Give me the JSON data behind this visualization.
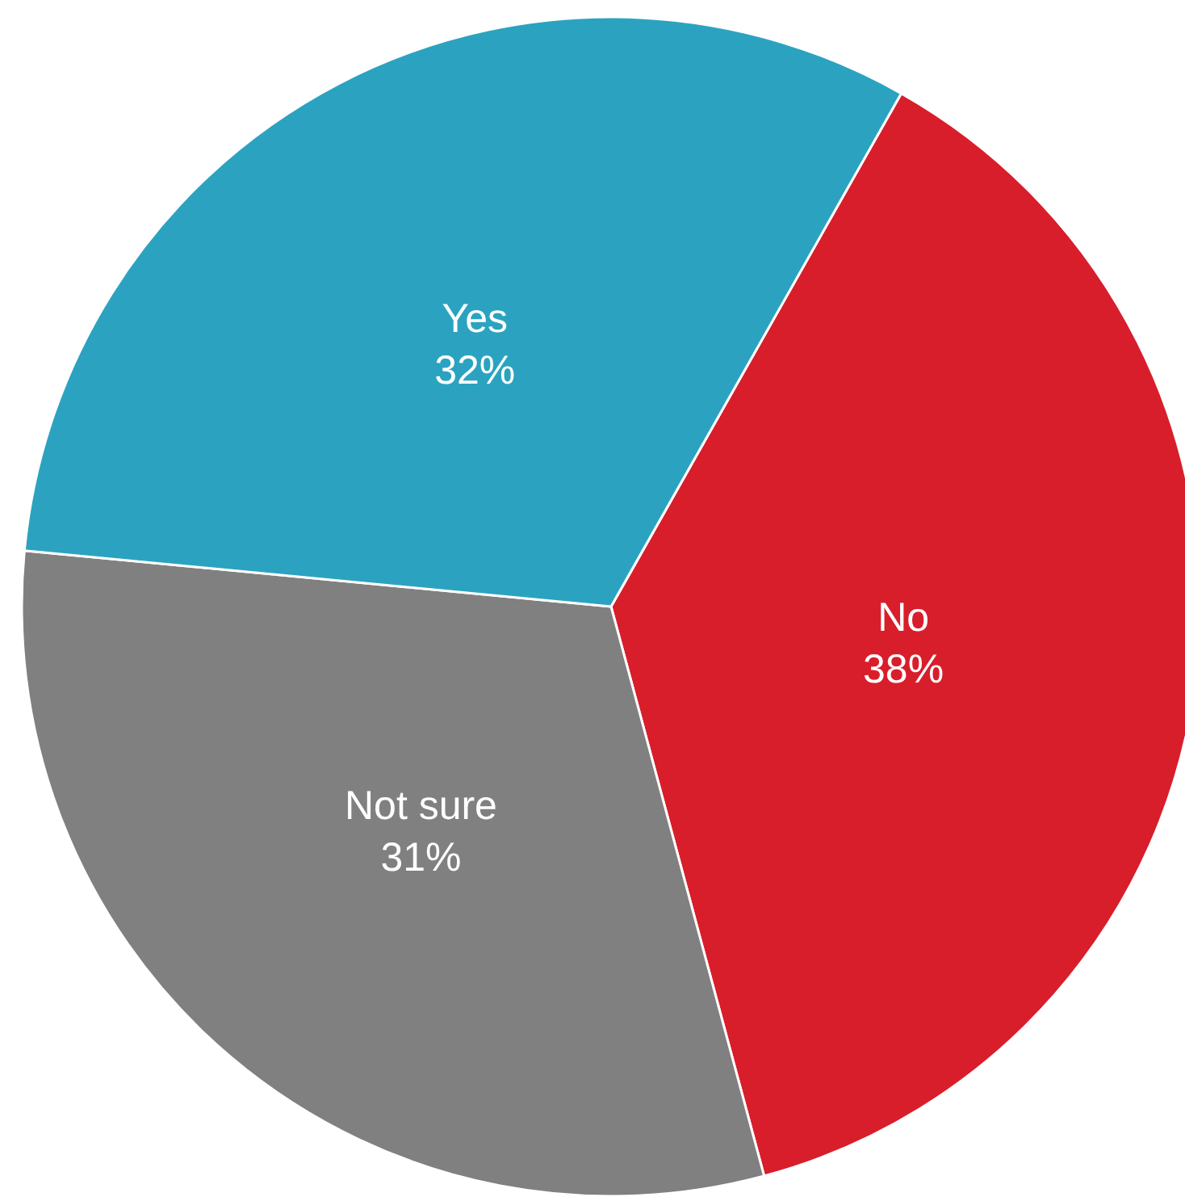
{
  "chart_data": {
    "type": "pie",
    "categories": [
      "No",
      "Not sure",
      "Yes"
    ],
    "values": [
      38,
      31,
      32
    ],
    "value_labels": [
      "38%",
      "31%",
      "32%"
    ],
    "colors": [
      "#d81e2b",
      "#808080",
      "#2ba3c0"
    ]
  }
}
